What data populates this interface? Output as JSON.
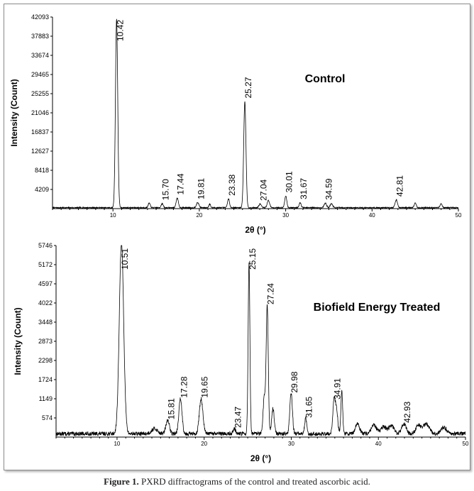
{
  "caption": {
    "label": "Figure 1.",
    "text": "PXRD diffractograms of the control and treated ascorbic acid."
  },
  "chart_data": [
    {
      "type": "line",
      "title": "Control",
      "xlabel": "2θ (°)",
      "ylabel": "Intensity (Count)",
      "xlim": [
        3,
        50
      ],
      "ylim": [
        0,
        42093
      ],
      "yticks": [
        "4209",
        "8418",
        "12627",
        "16837",
        "21046",
        "25255",
        "29465",
        "33674",
        "37883",
        "42093"
      ],
      "xticks": [
        "10",
        "20",
        "30",
        "40",
        "50"
      ],
      "baseline": 200,
      "noise": 120,
      "line_color": "#000000",
      "peaks": [
        {
          "x": 10.42,
          "y": 41500,
          "w": 0.13,
          "label": "10.42"
        },
        {
          "x": 14.2,
          "y": 1000,
          "w": 0.12,
          "label": ""
        },
        {
          "x": 15.7,
          "y": 900,
          "w": 0.12,
          "label": "15.70"
        },
        {
          "x": 17.44,
          "y": 2100,
          "w": 0.13,
          "label": "17.44"
        },
        {
          "x": 19.81,
          "y": 1100,
          "w": 0.15,
          "label": "19.81"
        },
        {
          "x": 21.2,
          "y": 800,
          "w": 0.1,
          "label": ""
        },
        {
          "x": 23.38,
          "y": 1900,
          "w": 0.12,
          "label": "23.38"
        },
        {
          "x": 25.27,
          "y": 23300,
          "w": 0.13,
          "label": "25.27"
        },
        {
          "x": 27.04,
          "y": 800,
          "w": 0.14,
          "label": "27.04"
        },
        {
          "x": 28.0,
          "y": 1600,
          "w": 0.14,
          "label": ""
        },
        {
          "x": 30.01,
          "y": 2600,
          "w": 0.12,
          "label": "30.01"
        },
        {
          "x": 31.67,
          "y": 1100,
          "w": 0.12,
          "label": "31.67"
        },
        {
          "x": 34.59,
          "y": 1000,
          "w": 0.14,
          "label": "34.59"
        },
        {
          "x": 35.3,
          "y": 900,
          "w": 0.14,
          "label": ""
        },
        {
          "x": 42.81,
          "y": 1700,
          "w": 0.14,
          "label": "42.81"
        },
        {
          "x": 45.0,
          "y": 1000,
          "w": 0.12,
          "label": ""
        },
        {
          "x": 48.0,
          "y": 900,
          "w": 0.12,
          "label": ""
        }
      ]
    },
    {
      "type": "line",
      "title": "Biofield Energy Treated",
      "xlabel": "2θ (°)",
      "ylabel": "Intensity (Count)",
      "xlim": [
        3,
        50
      ],
      "ylim": [
        0,
        5746
      ],
      "yticks": [
        "574",
        "1149",
        "1724",
        "2298",
        "2873",
        "3448",
        "4022",
        "4597",
        "5172",
        "5746"
      ],
      "xticks": [
        "10",
        "20",
        "30",
        "40",
        "50"
      ],
      "baseline": 100,
      "noise": 60,
      "line_color": "#000000",
      "peaks": [
        {
          "x": 10.51,
          "y": 5746,
          "w": 0.25,
          "label": "10.51"
        },
        {
          "x": 14.3,
          "y": 150,
          "w": 0.35,
          "label": ""
        },
        {
          "x": 15.81,
          "y": 400,
          "w": 0.2,
          "label": "15.81"
        },
        {
          "x": 17.28,
          "y": 1050,
          "w": 0.18,
          "label": "17.28"
        },
        {
          "x": 19.65,
          "y": 1050,
          "w": 0.2,
          "label": "19.65"
        },
        {
          "x": 23.47,
          "y": 150,
          "w": 0.15,
          "label": "23.47"
        },
        {
          "x": 25.15,
          "y": 5150,
          "w": 0.1,
          "label": "25.15"
        },
        {
          "x": 26.9,
          "y": 1100,
          "w": 0.13,
          "label": ""
        },
        {
          "x": 27.24,
          "y": 3850,
          "w": 0.12,
          "label": "27.24"
        },
        {
          "x": 27.9,
          "y": 750,
          "w": 0.15,
          "label": ""
        },
        {
          "x": 29.98,
          "y": 1200,
          "w": 0.15,
          "label": "29.98"
        },
        {
          "x": 31.65,
          "y": 450,
          "w": 0.12,
          "label": "31.65"
        },
        {
          "x": 34.91,
          "y": 1000,
          "w": 0.14,
          "label": "34.91"
        },
        {
          "x": 35.2,
          "y": 650,
          "w": 0.15,
          "label": ""
        },
        {
          "x": 35.8,
          "y": 1300,
          "w": 0.1,
          "label": ""
        },
        {
          "x": 37.6,
          "y": 300,
          "w": 0.25,
          "label": ""
        },
        {
          "x": 39.5,
          "y": 250,
          "w": 0.3,
          "label": ""
        },
        {
          "x": 40.6,
          "y": 200,
          "w": 0.3,
          "label": ""
        },
        {
          "x": 41.5,
          "y": 250,
          "w": 0.3,
          "label": ""
        },
        {
          "x": 42.93,
          "y": 300,
          "w": 0.25,
          "label": "42.93"
        },
        {
          "x": 44.6,
          "y": 250,
          "w": 0.3,
          "label": ""
        },
        {
          "x": 45.5,
          "y": 300,
          "w": 0.35,
          "label": ""
        },
        {
          "x": 47.5,
          "y": 200,
          "w": 0.3,
          "label": ""
        }
      ]
    }
  ]
}
